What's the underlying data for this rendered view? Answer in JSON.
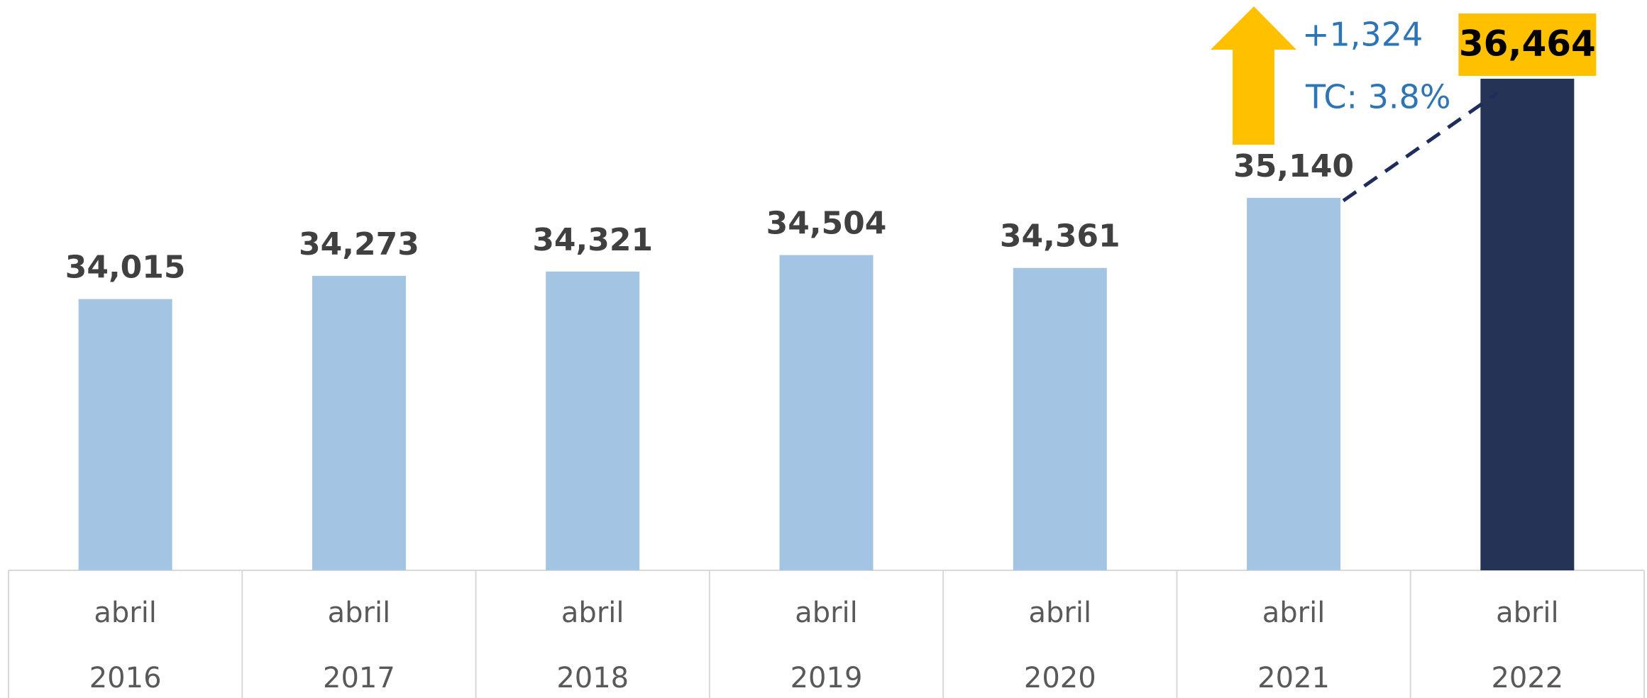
{
  "chart_data": {
    "type": "bar",
    "categories": [
      [
        "abril",
        "2016"
      ],
      [
        "abril",
        "2017"
      ],
      [
        "abril",
        "2018"
      ],
      [
        "abril",
        "2019"
      ],
      [
        "abril",
        "2020"
      ],
      [
        "abril",
        "2021"
      ],
      [
        "abril",
        "2022"
      ]
    ],
    "values": [
      34015,
      34273,
      34321,
      34504,
      34361,
      35140,
      36464
    ],
    "value_labels": [
      "34,015",
      "34,273",
      "34,321",
      "34,504",
      "34,361",
      "35,140",
      "36,464"
    ],
    "colors": [
      "#a3c4e2",
      "#a3c4e2",
      "#a3c4e2",
      "#a3c4e2",
      "#a3c4e2",
      "#a3c4e2",
      "#253356"
    ],
    "ylim": [
      31000,
      37000
    ],
    "annotations": [
      "+1,324",
      "TC: 3.8%"
    ]
  }
}
